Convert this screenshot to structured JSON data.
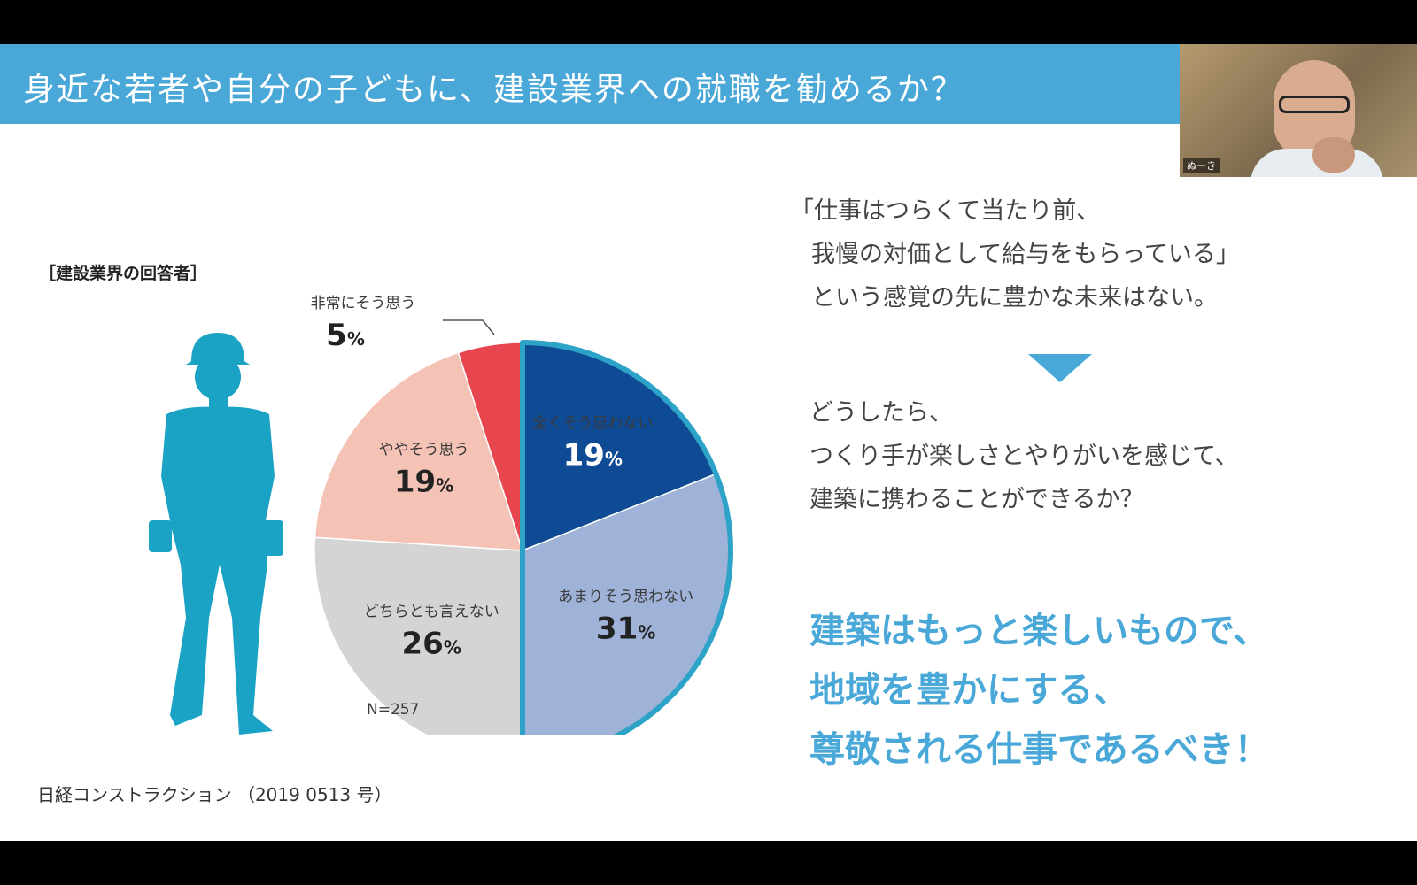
{
  "slide": {
    "title": "身近な若者や自分の子どもに、建設業界への就職を勧めるか？",
    "category_label": "［建設業界の回答者］",
    "source": "日経コンストラクション （2019 0513 号）",
    "quote_lines": [
      "「仕事はつらくて当たり前、",
      "我慢の対価として給与をもらっている」",
      "という感覚の先に豊かな未来はない。"
    ],
    "question_lines": [
      "どうしたら、",
      "つくり手が楽しさとやりがいを感じて、",
      "建築に携わることができるか？"
    ],
    "conclusion_lines": [
      "建築はもっと楽しいもので、",
      "地域を豊かにする、",
      "尊敬される仕事であるべき！"
    ]
  },
  "video": {
    "participant_name": "ぬーき"
  },
  "chart_data": {
    "type": "pie",
    "title": "",
    "sample_size_label": "N=257",
    "percent_sign": "%",
    "start_angle_deg": 0,
    "direction": "clockwise",
    "slices": [
      {
        "label": "全くそう思わない",
        "value": 19,
        "color": "#0f4a94",
        "text_color": "#ffffff",
        "highlighted": true
      },
      {
        "label": "あまりそう思わない",
        "value": 31,
        "color": "#9fb2d8",
        "text_color": "#222222",
        "highlighted": true
      },
      {
        "label": "どちらとも言えない",
        "value": 26,
        "color": "#d4d4d4",
        "text_color": "#222222",
        "highlighted": false
      },
      {
        "label": "ややそう思う",
        "value": 19,
        "color": "#f5c3b6",
        "text_color": "#222222",
        "highlighted": false
      },
      {
        "label": "非常にそう思う",
        "value": 5,
        "color": "#e8464e",
        "text_color": "#222222",
        "highlighted": false,
        "label_outside": true
      }
    ],
    "highlight_outline_color": "#2ea3c8",
    "worker_silhouette_color": "#1aa3c4"
  }
}
